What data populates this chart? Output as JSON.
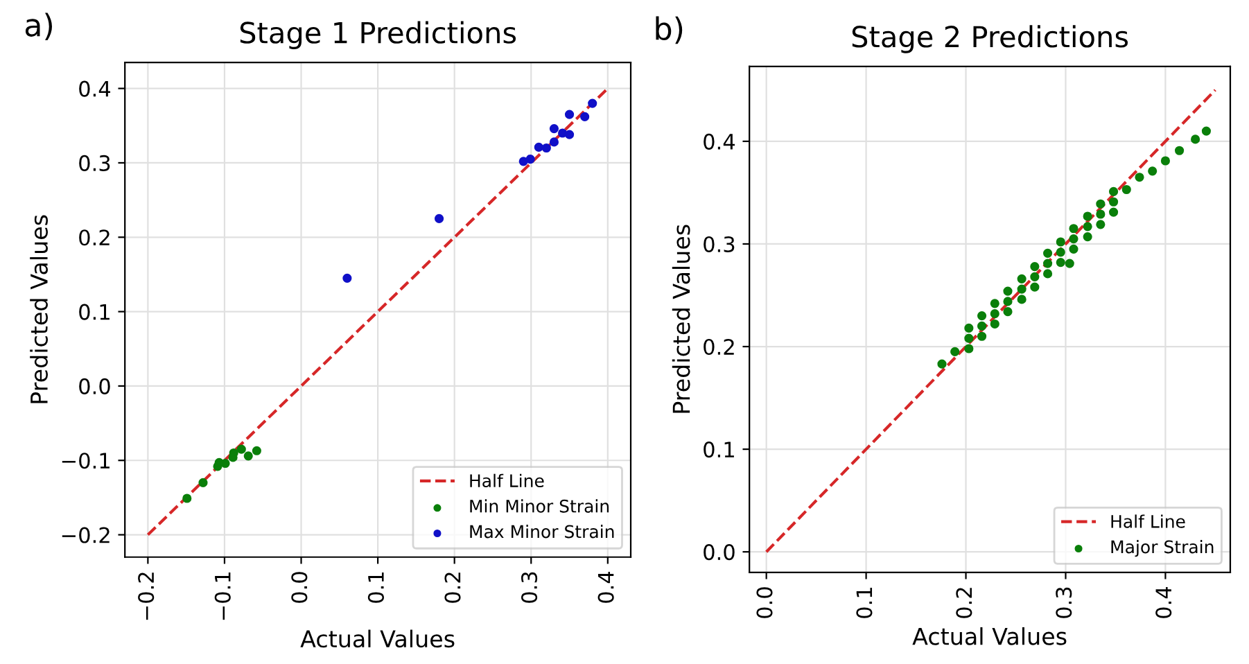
{
  "chart_data": [
    {
      "type": "scatter",
      "title": "Stage 1 Predictions",
      "xlabel": "Actual Values",
      "ylabel": "Predicted Values",
      "annotations": [
        "a)"
      ],
      "xlim": [
        -0.23,
        0.43
      ],
      "ylim": [
        -0.23,
        0.435
      ],
      "xticks": [
        {
          "value": -0.2,
          "label": "−0.2"
        },
        {
          "value": -0.1,
          "label": "−0.1"
        },
        {
          "value": 0.0,
          "label": "0.0"
        },
        0.1,
        0.2,
        0.3,
        0.4
      ],
      "yticks": [
        {
          "value": -0.2,
          "label": "−0.2"
        },
        {
          "value": -0.1,
          "label": "−0.1"
        },
        {
          "value": 0.0,
          "label": "0.0"
        },
        0.1,
        0.2,
        0.3,
        0.4
      ],
      "grid": true,
      "legend": "bottom right",
      "series": [
        {
          "name": "Half Line",
          "type": "line",
          "line_style": "dashed",
          "marker": "none",
          "color": "#d62728",
          "x": [
            -0.2,
            0.4
          ],
          "values": [
            -0.2,
            0.4
          ]
        },
        {
          "name": "Min Minor Strain",
          "marker": "circle",
          "color": "#0a7f0a",
          "x": [
            -0.149,
            -0.128,
            -0.109,
            -0.107,
            -0.099,
            -0.089,
            -0.088,
            -0.078,
            -0.069,
            -0.058
          ],
          "values": [
            -0.151,
            -0.13,
            -0.108,
            -0.103,
            -0.104,
            -0.096,
            -0.09,
            -0.085,
            -0.094,
            -0.087
          ]
        },
        {
          "name": "Max Minor Strain",
          "marker": "circle",
          "color": "#1010c8",
          "x": [
            0.06,
            0.18,
            0.29,
            0.299,
            0.31,
            0.32,
            0.33,
            0.33,
            0.341,
            0.35,
            0.35,
            0.37,
            0.38
          ],
          "values": [
            0.145,
            0.225,
            0.302,
            0.305,
            0.321,
            0.32,
            0.328,
            0.346,
            0.34,
            0.338,
            0.365,
            0.362,
            0.38
          ]
        }
      ]
    },
    {
      "type": "scatter",
      "title": "Stage 2 Predictions",
      "xlabel": "Actual Values",
      "ylabel": "Predicted Values",
      "annotations": [
        "b)"
      ],
      "xlim": [
        -0.017,
        0.465
      ],
      "ylim": [
        -0.02,
        0.473
      ],
      "xticks": [
        {
          "value": 0.0,
          "label": "0.0"
        },
        0.1,
        0.2,
        0.3,
        0.4
      ],
      "yticks": [
        {
          "value": 0.0,
          "label": "0.0"
        },
        0.1,
        0.2,
        0.3,
        0.4
      ],
      "grid": true,
      "legend": "bottom right",
      "series": [
        {
          "name": "Half Line",
          "type": "line",
          "line_style": "dashed",
          "marker": "none",
          "color": "#d62728",
          "x": [
            0.0,
            0.45
          ],
          "values": [
            0.0,
            0.45
          ]
        },
        {
          "name": "Major Strain",
          "marker": "circle",
          "color": "#0a7f0a",
          "x": [
            0.176,
            0.189,
            0.203,
            0.203,
            0.203,
            0.216,
            0.216,
            0.216,
            0.229,
            0.229,
            0.229,
            0.242,
            0.242,
            0.242,
            0.256,
            0.256,
            0.256,
            0.269,
            0.269,
            0.269,
            0.282,
            0.282,
            0.282,
            0.295,
            0.295,
            0.295,
            0.308,
            0.308,
            0.308,
            0.322,
            0.322,
            0.322,
            0.335,
            0.335,
            0.335,
            0.348,
            0.348,
            0.348,
            0.361,
            0.374,
            0.304,
            0.387,
            0.4,
            0.414,
            0.43,
            0.441
          ],
          "values": [
            0.183,
            0.195,
            0.208,
            0.218,
            0.198,
            0.22,
            0.23,
            0.21,
            0.232,
            0.242,
            0.222,
            0.244,
            0.254,
            0.234,
            0.256,
            0.266,
            0.246,
            0.268,
            0.278,
            0.258,
            0.281,
            0.291,
            0.271,
            0.292,
            0.302,
            0.282,
            0.305,
            0.315,
            0.295,
            0.317,
            0.327,
            0.307,
            0.329,
            0.339,
            0.319,
            0.341,
            0.351,
            0.331,
            0.353,
            0.365,
            0.281,
            0.371,
            0.381,
            0.391,
            0.402,
            0.41
          ]
        }
      ]
    }
  ]
}
